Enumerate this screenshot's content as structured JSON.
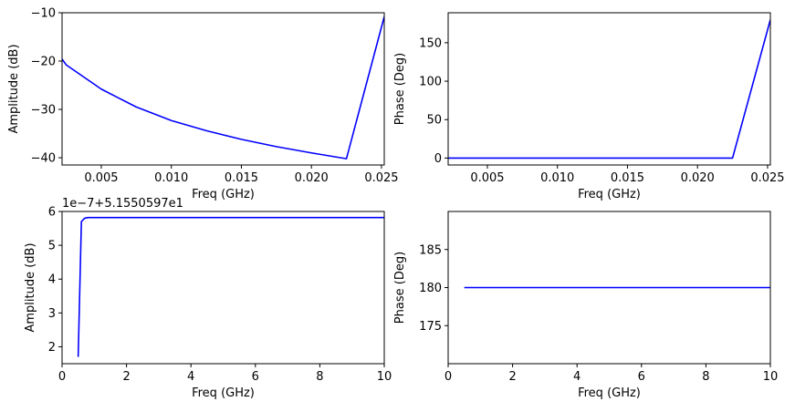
{
  "chart_data": [
    {
      "type": "line",
      "title": "",
      "xlabel": "Freq (GHz)",
      "ylabel": "Amplitude  (dB)",
      "xlim": [
        0.0022,
        0.0252
      ],
      "ylim": [
        -41.5,
        -10
      ],
      "xticks": [
        "0.005",
        "0.010",
        "0.015",
        "0.020",
        "0.025"
      ],
      "xtick_values": [
        0.005,
        0.01,
        0.015,
        0.02,
        0.025
      ],
      "yticks": [
        "−40",
        "−30",
        "−20",
        "−10"
      ],
      "ytick_values": [
        -40,
        -30,
        -20,
        -10
      ],
      "offset_text": "",
      "series": [
        {
          "color": "#0000ff",
          "x": [
            0.0022,
            0.0025,
            0.005,
            0.0075,
            0.01,
            0.0125,
            0.015,
            0.0175,
            0.02,
            0.0225,
            0.0252
          ],
          "y": [
            -19.6,
            -20.8,
            -25.8,
            -29.5,
            -32.3,
            -34.4,
            -36.2,
            -37.7,
            -39.0,
            -40.2,
            -10.8
          ]
        }
      ]
    },
    {
      "type": "line",
      "title": "",
      "xlabel": "Freq (GHz)",
      "ylabel": "Phase (Deg)",
      "xlim": [
        0.0022,
        0.0252
      ],
      "ylim": [
        -9,
        189
      ],
      "xticks": [
        "0.005",
        "0.010",
        "0.015",
        "0.020",
        "0.025"
      ],
      "xtick_values": [
        0.005,
        0.01,
        0.015,
        0.02,
        0.025
      ],
      "yticks": [
        "0",
        "50",
        "100",
        "150"
      ],
      "ytick_values": [
        0,
        50,
        100,
        150
      ],
      "offset_text": "",
      "series": [
        {
          "color": "#0000ff",
          "x": [
            0.0022,
            0.0225,
            0.0252
          ],
          "y": [
            0,
            0,
            180
          ]
        }
      ]
    },
    {
      "type": "line",
      "title": "",
      "xlabel": "Freq (GHz)",
      "ylabel": "Amplitude  (dB)",
      "xlim": [
        0,
        10
      ],
      "ylim": [
        1.5,
        6
      ],
      "xticks": [
        "0",
        "2",
        "4",
        "6",
        "8",
        "10"
      ],
      "xtick_values": [
        0,
        2,
        4,
        6,
        8,
        10
      ],
      "yticks": [
        "2",
        "3",
        "4",
        "5",
        "6"
      ],
      "ytick_values": [
        2,
        3,
        4,
        5,
        6
      ],
      "offset_text": "1e−7+5.1550597e1",
      "series": [
        {
          "color": "#0000ff",
          "x": [
            0.5,
            0.6,
            0.7,
            0.8,
            10
          ],
          "y": [
            1.7,
            5.7,
            5.8,
            5.82,
            5.82
          ]
        }
      ]
    },
    {
      "type": "line",
      "title": "",
      "xlabel": "Freq (GHz)",
      "ylabel": "Phase (Deg)",
      "xlim": [
        0,
        10
      ],
      "ylim": [
        170,
        190
      ],
      "xticks": [
        "0",
        "2",
        "4",
        "6",
        "8",
        "10"
      ],
      "xtick_values": [
        0,
        2,
        4,
        6,
        8,
        10
      ],
      "yticks": [
        "175",
        "180",
        "185"
      ],
      "ytick_values": [
        175,
        180,
        185
      ],
      "offset_text": "",
      "series": [
        {
          "color": "#0000ff",
          "x": [
            0.5,
            10
          ],
          "y": [
            180,
            180
          ]
        }
      ]
    }
  ]
}
